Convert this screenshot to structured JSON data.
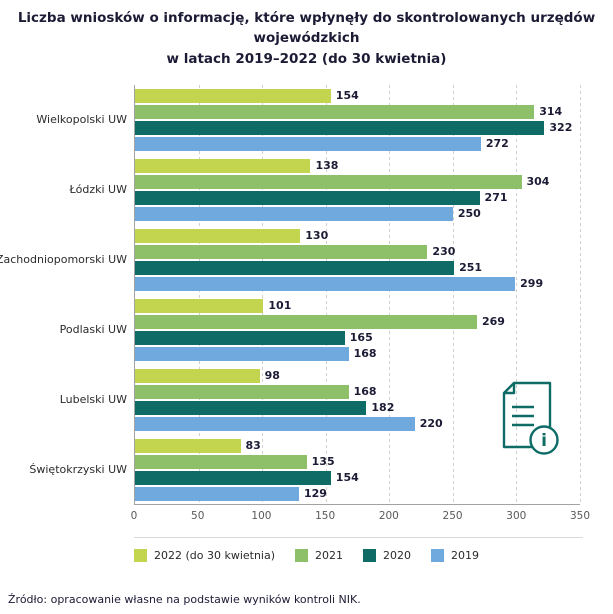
{
  "title": {
    "line1": "Liczba wniosków o informację, które wpłynęły do skontrolowanych urzędów wojewódzkich",
    "line2": "w latach 2019–2022 (do 30 kwietnia)"
  },
  "source_note": "Źródło: opracowanie własne na podstawie wyników kontroli NIK.",
  "icon": {
    "name": "document-info-icon",
    "glyph": "i",
    "color": "#0e6b66"
  },
  "colors": {
    "axis": "#a3a3a3",
    "gridline": "#cfcfcf",
    "text": "#1b1b35",
    "tick_text": "#595959"
  },
  "chart_data": {
    "type": "bar",
    "orientation": "horizontal",
    "title": "Liczba wniosków o informację, które wpłynęły do skontrolowanych urzędów wojewódzkich w latach 2019–2022 (do 30 kwietnia)",
    "categories": [
      "Wielkopolski UW",
      "Łódzki UW",
      "Zachodniopomorski UW",
      "Podlaski UW",
      "Lubelski UW",
      "Świętokrzyski UW"
    ],
    "series": [
      {
        "name": "2022 (do 30 kwietnia)",
        "color": "#c3d54f",
        "values": [
          154,
          138,
          130,
          101,
          98,
          83
        ]
      },
      {
        "name": "2021",
        "color": "#8ec06a",
        "values": [
          314,
          304,
          230,
          269,
          168,
          135
        ]
      },
      {
        "name": "2020",
        "color": "#0e6b66",
        "values": [
          322,
          271,
          251,
          165,
          182,
          154
        ]
      },
      {
        "name": "2019",
        "color": "#70a9de",
        "values": [
          272,
          250,
          299,
          168,
          220,
          129
        ]
      }
    ],
    "xlim": [
      0,
      350
    ],
    "xticks": [
      0,
      50,
      100,
      150,
      200,
      250,
      300,
      350
    ],
    "grid": "vertical-dashed",
    "legend_position": "bottom",
    "value_labels": true
  }
}
